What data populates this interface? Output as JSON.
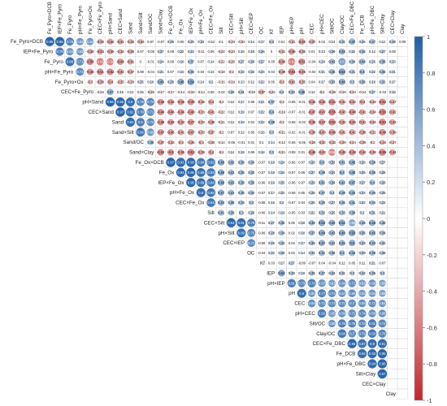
{
  "chart_data": {
    "type": "heatmap",
    "variables": [
      "Fe_Pyro×DCB",
      "IEP×Fe_Pyro",
      "Fe_Pyro",
      "pH×Fe_Pyro",
      "Fe_Pyro×Ox",
      "CEC×Fe_Pyro",
      "pH×Sand",
      "CEC×Sand",
      "Sand",
      "Sand×Silt",
      "Sand/OC",
      "Sand×Clay",
      "Fe_Ox×DCB",
      "Fe_Ox",
      "IEP×Fe_Ox",
      "pH×Fe_Ox",
      "CEC×Fe_Ox",
      "Silt",
      "CEC×Silt",
      "pH×Silt",
      "CEC×IEP",
      "OC",
      "Kf",
      "IEP",
      "pH×IEP",
      "pH",
      "CEC",
      "pH×CEC",
      "Silt/OC",
      "Clay/OC",
      "CEC×Fe_DBC",
      "Fe_DCB",
      "pH×Fe_DBC",
      "Silt×Clay",
      "CEC×Clay",
      "Clay"
    ],
    "rows_visible": [
      "0.95 0.95 0.76 0.63 0.63 -0.38 -0.44 -0.41 -0.35 -0.34 0.07 -0.07 0.26 0.05 0.25 0.23 -0.12 0.1 -0.23 -0.22 0.14 0.17 0.3 0.01 -0.31 -0.46 -0.37 0.02 0.14 0.31 0.47 0.25 0.37 0.12 0.29 0.09",
      "0.79 0.64 0.63 -0.38 -0.43 -0.39 -0.34 -0.36 0.07 -0.08 0.27 0.08 0.22 0.23 -0.11 0.06 -0.22 -0.23 0.16 0.18 0.26 0 -0.31 -0.46 -0.36 0.01 0.13 0.29 0.45 0.22 0.35 0.12 0.27 0.08",
      "0.88 0.71 -0.54 -0.61 -0.59 -0.49 -0.41 0 -0.01 0.24 0.09 0.18 0.37 0.07 0.14 -0.22 -0.25 0.27 0.26 0.27 0.05 -0.44 -0.61 -0.51 -0.04 0.24 0.42 0.6 0.34 0.44 0.25 0.39 0.23",
      "0.72 -0.48 -0.51 -0.52 -0.44 -0.37 0.08 -0.04 0.21 0.07 0.15 0.36 0.03 0.14 -0.18 -0.2 0.23 0.24 0.24 0.04 -0.39 -0.54 -0.45 -0.03 0.21 0.38 0.54 0.31 0.4 0.22 0.36 0.21",
      "-0.3 -0.38 -0.4 -0.33 -0.29 0.25 0.18 0.49 0.29 0.48 0.54 0.14 0.2 -0.16 -0.19 0.13 0.12 0.22 0.05 -0.3 -0.41 -0.35 0.04 0.17 0.33 0.48 0.3 0.36 0.18 0.32 0.17",
      "-0.16 0.47 0.15 0.12 0.15 -0.25 -0.17 -0.17 -0.14 -0.19 -0.14 0.06 -0.02 0.29 0.31 -0.18 -0.37 -0.24 0.3 0.34 0.45 0.12 -0.2 -0.26 -0.19 -0.24 -0.14 0.27 -0.03 0.18",
      "0.96 0.95 0.9 0.76 0.74 -0.48 -0.46 -0.46 -0.49 -0.36 -0.4 -0.2 0.12 0.17 0.05 0.21 0.37 -0.2 -0.05 -0.01 -0.44 -0.46 -0.51 -0.41 -0.42 -0.4 -0.33 -0.52 -0.37",
      "0.97 0.92 0.79 0.71 -0.49 -0.46 -0.46 -0.48 -0.33 -0.41 -0.22 0.12 0.19 0.07 0.22 0.4 -0.19 -0.07 -0.01 -0.47 -0.47 -0.55 -0.43 -0.48 -0.41 -0.34 -0.55 -0.42",
      "0.92 0.8 0.72 -0.49 -0.46 -0.44 -0.47 -0.33 -0.39 -0.21 0.12 0.19 0.04 0.22 0.39 -0.2 -0.06 -0.02 -0.45 -0.47 -0.53 -0.42 -0.46 -0.41 -0.34 -0.53 -0.42",
      "0.86 0.65 -0.47 -0.45 -0.41 -0.47 -0.33 -0.37 -0.2 0.07 0.12 0.05 0.16 0.3 -0.21 -0.02 -0.01 -0.39 -0.43 -0.48 -0.41 -0.42 -0.39 -0.32 -0.49 -0.39",
      "0.38 -0.37 -0.34 -0.3 -0.35 -0.3 -0.28 -0.14 -0.06 -0.01 0.01 0.1 0.14 -0.12 -0.05 -0.05 -0.26 -0.32 -0.32 -0.29 -0.24 -0.29 -0.2 -0.34 -0.27",
      "-0.52 -0.5 -0.45 -0.53 -0.38 -0.4 -0.2 0.14 0.19 0.09 0.18 0.3 -0.21 -0.08 0.01 -0.48 -0.43 -0.56 -0.46 -0.48 -0.44 -0.38 -0.55 -0.44",
      "0.97 0.93 0.95 0.84 0.82 0.49 0.42 0.36 0.34 -0.07 0.19 0.24 -0.06 0.07 0.28 0.4 0.32 0.41 0.46 0.26 0.39 0.27",
      "0.93 0.95 0.88 0.83 0.48 0.41 0.36 0.33 -0.07 0.18 0.24 -0.07 0.06 0.27 0.39 0.31 0.4 0.45 0.25 0.38 0.26",
      "0.95 0.89 0.84 0.49 0.43 0.38 0.35 -0.06 0.19 0.25 -0.06 0.07 0.29 0.41 0.34 0.42 0.47 0.27 0.4 0.28",
      "0.9 0.85 0.47 0.41 0.35 0.34 -0.07 0.17 0.22 -0.06 0.05 0.26 0.37 0.3 0.39 0.44 0.24 0.36 0.25",
      "0.84 0.44 0.38 0.34 0.3 -0.08 0.15 0.2 -0.07 0.04 0.25 0.35 0.27 0.36 0.41 0.22 0.34 0.23",
      "0.41 0.36 0.3 0.28 -0.06 0.14 0.19 -0.05 0.03 0.22 0.32 0.25 0.33 0.38 0.2 0.31 0.21",
      "0.94 0.91 0.79 -0.11 0.27 0.36 0.05 0.19 0.39 0.52 0.46 0.51 0.56 0.38 0.48 0.36",
      "0.89 0.75 -0.06 0.28 0.34 0.02 0.18 0.37 0.49 0.43 0.48 0.53 0.36 0.45 0.34",
      "0.71 -0.09 0.25 0.32 0.04 0.17 0.35 0.47 0.41 0.45 0.5 0.33 0.43 0.32",
      "-0.04 0.22 0.28 0.03 0.14 0.31 0.41 0.36 0.4 0.44 0.29 0.38 0.28",
      "0.03 0.17 0.27 -0.09 -0.07 0.04 -0.04 0.12 0.05 0.11 0.21 0.07",
      "0.54 0.29 0.18 0.35 0.37 0.34 0.31 0.3 0.32 0.35 0.3",
      "0.81 0.73 0.79 0.67 0.61 0.69 0.71 0.61 0.66 0.58",
      "0.9 0.65 0.77 0.71 0.67 0.69 0.63 0.64 0.58",
      "0.69 0.71 0.73 0.71 0.7 0.69 0.71 0.64",
      "0.82 0.65 0.69 0.71 0.74 0.69 0.68",
      "0.65 0.79 0.76 0.73 0.81 0.74",
      "0.84 0.7 0.73 0.83 0.76",
      "0.95 0.87 0.9 0.91",
      "0.92 0.93 0.95",
      "0.94 0.96",
      "0.97",
      "",
      ""
    ],
    "colorbar": {
      "min": -1,
      "max": 1,
      "ticks": [
        "1",
        "0.8",
        "0.6",
        "0.4",
        "0.2",
        "0",
        "-0.2",
        "-0.4",
        "-0.6",
        "-0.8",
        "-1"
      ]
    },
    "colors": {
      "positive": "#1f5fa8",
      "negative": "#c0282c",
      "mid": "#ffffff",
      "grid": "#d9d9d9"
    }
  }
}
